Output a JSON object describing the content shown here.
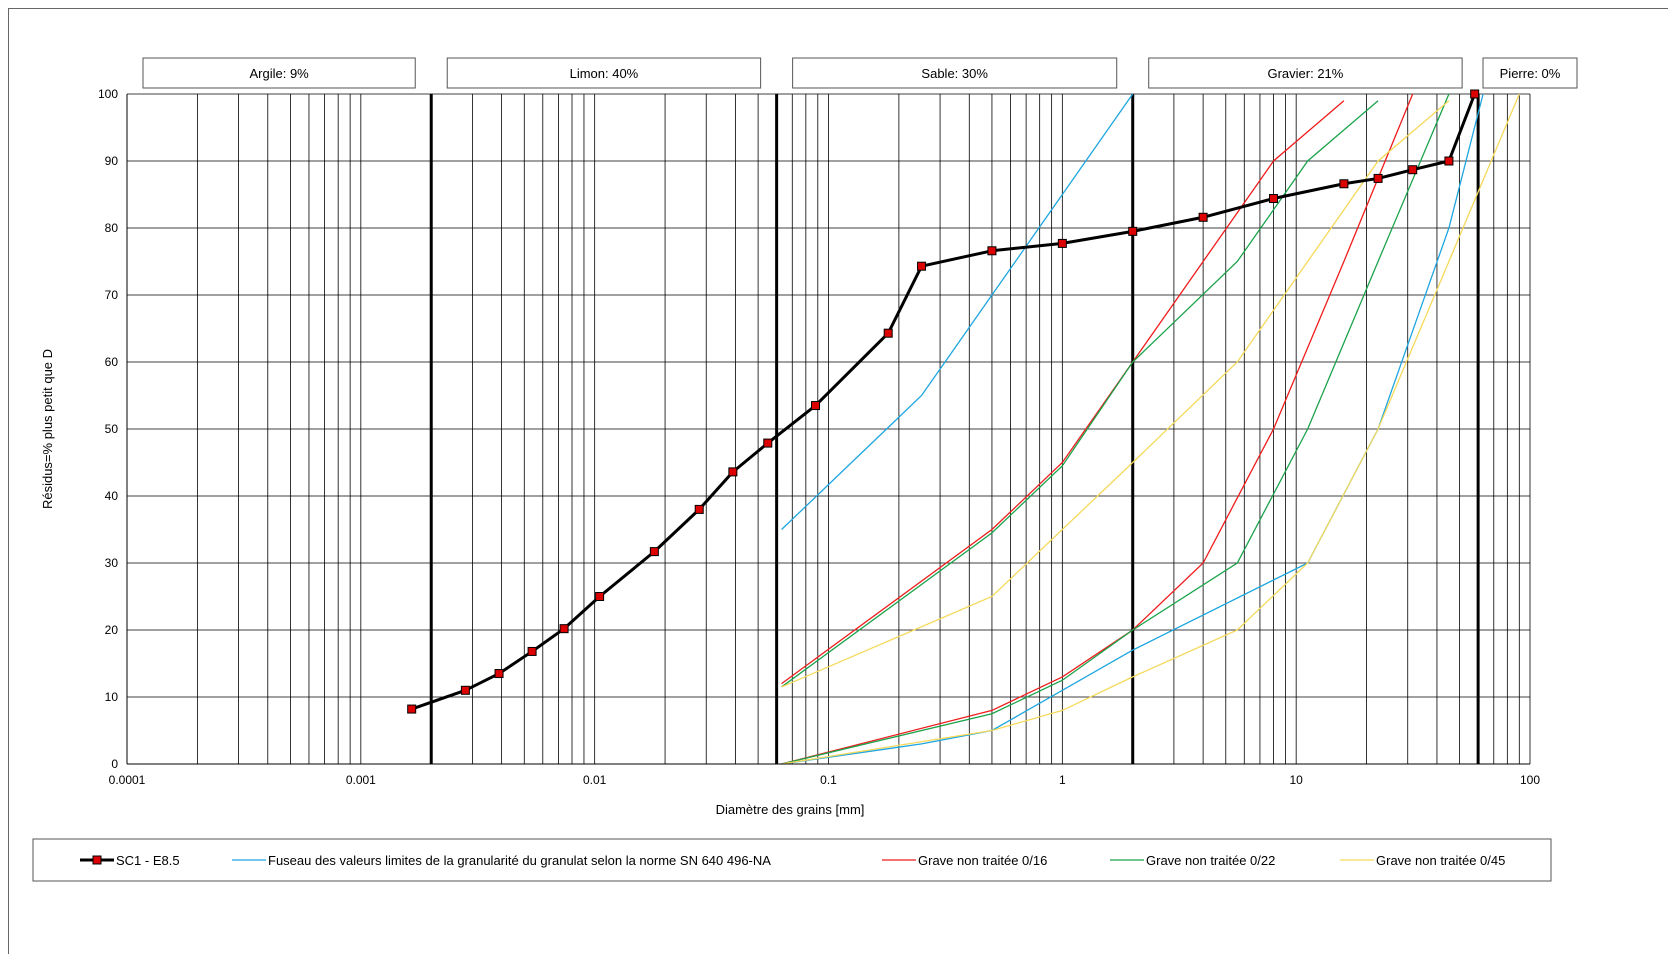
{
  "chart_data": {
    "type": "line",
    "xscale": "log",
    "xlim": [
      0.0001,
      100
    ],
    "ylim": [
      0,
      100
    ],
    "grid": true,
    "xlabel": "Diamètre des grains [mm]",
    "ylabel": "Résidus=% plus petit que D",
    "xticks": [
      {
        "value": 0.0001,
        "label": "0.0001"
      },
      {
        "value": 0.001,
        "label": "0.001"
      },
      {
        "value": 0.01,
        "label": "0.01"
      },
      {
        "value": 0.1,
        "label": "0.1"
      },
      {
        "value": 1,
        "label": "1"
      },
      {
        "value": 10,
        "label": "10"
      },
      {
        "value": 100,
        "label": "100"
      }
    ],
    "yticks": [
      0,
      10,
      20,
      30,
      40,
      50,
      60,
      70,
      80,
      90,
      100
    ],
    "boundaries": [
      0.002,
      0.06,
      2,
      60
    ],
    "fractions": [
      {
        "label": "Argile: 9%",
        "from": 0.0001,
        "to": 0.002
      },
      {
        "label": "Limon: 40%",
        "from": 0.002,
        "to": 0.06
      },
      {
        "label": "Sable: 30%",
        "from": 0.06,
        "to": 2
      },
      {
        "label": "Gravier: 21%",
        "from": 2,
        "to": 60
      },
      {
        "label": "Pierre: 0%",
        "from": 60,
        "to": 100
      }
    ],
    "legend_position": "bottom",
    "series": [
      {
        "name": "SC1 - E8.5",
        "color": "#000000",
        "marker": "square",
        "marker_color": "#dd0000",
        "x": [
          0.00165,
          0.0028,
          0.0039,
          0.0054,
          0.0074,
          0.0105,
          0.018,
          0.028,
          0.039,
          0.055,
          0.088,
          0.18,
          0.25,
          0.5,
          1,
          2,
          4,
          8,
          16,
          22.4,
          31.5,
          45,
          58
        ],
        "y": [
          8.2,
          11.0,
          13.5,
          16.8,
          20.2,
          25.0,
          31.7,
          38.0,
          43.6,
          47.9,
          53.5,
          64.3,
          74.3,
          76.6,
          77.7,
          79.5,
          81.6,
          84.4,
          86.6,
          87.4,
          88.7,
          90.0,
          100
        ]
      },
      {
        "name": "Fuseau des valeurs limites de la granularité du granulat selon la norme SN 640 496-NA",
        "color": "#1ea6e0",
        "lines": [
          {
            "x": [
              0.063,
              0.25,
              0.5,
              1,
              2
            ],
            "y": [
              35,
              55,
              70,
              85,
              100
            ]
          },
          {
            "x": [
              0.063,
              0.25,
              0.5,
              1,
              2,
              11.2,
              22.4,
              45,
              63
            ],
            "y": [
              0,
              3,
              5,
              11,
              17,
              30,
              50,
              80,
              100
            ]
          }
        ]
      },
      {
        "name": "Grave non traitée 0/16",
        "color": "#ee1c1c",
        "lines": [
          {
            "x": [
              0.063,
              0.5,
              1,
              2,
              4,
              8,
              16
            ],
            "y": [
              12,
              35,
              45,
              60,
              75,
              90,
              99
            ]
          },
          {
            "x": [
              0.063,
              0.5,
              1,
              2,
              4,
              8,
              16,
              31.5
            ],
            "y": [
              0,
              8,
              13,
              20,
              30,
              50,
              75,
              100
            ]
          }
        ]
      },
      {
        "name": "Grave non traitée 0/22",
        "color": "#1aa34a",
        "lines": [
          {
            "x": [
              0.063,
              0.5,
              1,
              2,
              5.6,
              11.2,
              22.4
            ],
            "y": [
              11.5,
              34.5,
              44.5,
              60,
              75,
              90,
              99
            ]
          },
          {
            "x": [
              0.063,
              0.5,
              1,
              2,
              5.6,
              11.2,
              22.4,
              45
            ],
            "y": [
              0,
              7.5,
              12.5,
              20,
              30,
              50,
              75,
              100
            ]
          }
        ]
      },
      {
        "name": "Grave non traitée 0/45",
        "color": "#f5d95a",
        "lines": [
          {
            "x": [
              0.063,
              0.5,
              1,
              2,
              5.6,
              11.2,
              22.4,
              45
            ],
            "y": [
              11.5,
              25,
              35,
              45,
              60,
              75,
              90,
              99
            ]
          },
          {
            "x": [
              0.063,
              0.5,
              1,
              2,
              5.6,
              11.2,
              22.4,
              45,
              90
            ],
            "y": [
              0,
              5,
              8,
              13,
              20,
              30,
              50,
              75,
              100
            ]
          }
        ]
      }
    ]
  }
}
